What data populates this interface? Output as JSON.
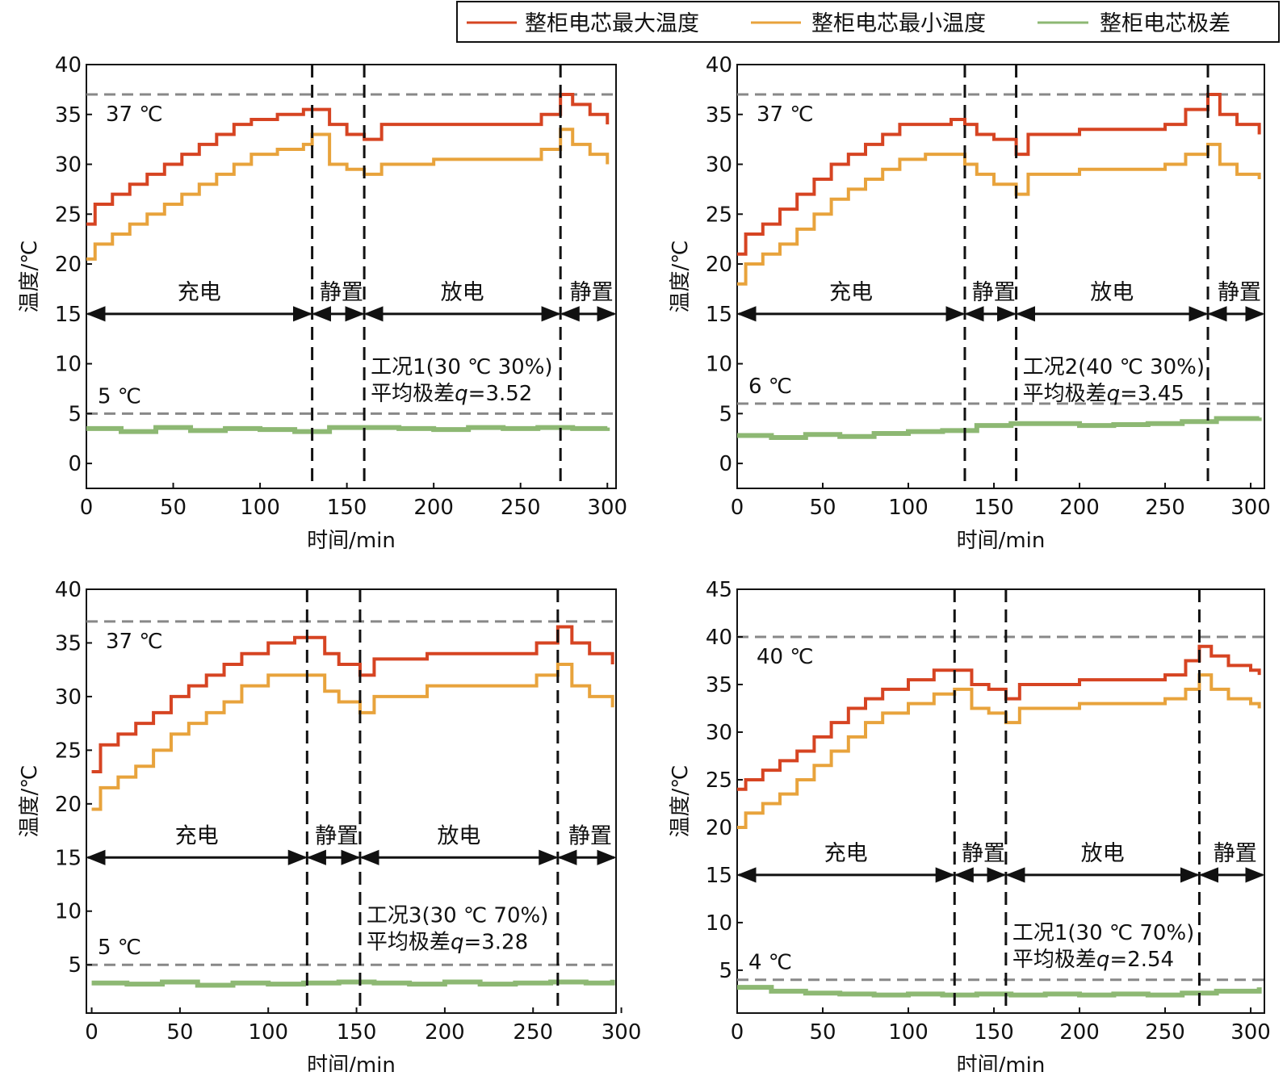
{
  "legend": {
    "items": [
      {
        "label": "整柜电芯最大温度",
        "color": "#d64422"
      },
      {
        "label": "整柜电芯最小温度",
        "color": "#e8a33c"
      },
      {
        "label": "整柜电芯极差",
        "color": "#8db873"
      }
    ]
  },
  "colors": {
    "max": "#d64422",
    "min": "#e8a33c",
    "range": "#8db873",
    "ref": "#888888"
  },
  "chart_data": [
    {
      "type": "line",
      "title": "工况1(30 ℃ 30%)",
      "xlabel": "时间/min",
      "ylabel": "温度/℃",
      "xlim": [
        0,
        305
      ],
      "ylim": [
        -2.5,
        40
      ],
      "xticks": [
        "0",
        "50",
        "100",
        "150",
        "200",
        "250",
        "300"
      ],
      "xtick_values": [
        0,
        50,
        100,
        150,
        200,
        250,
        300
      ],
      "yticks": [
        "0",
        "5",
        "10",
        "15",
        "20",
        "25",
        "30",
        "35",
        "40"
      ],
      "ytick_values": [
        0,
        5,
        10,
        15,
        20,
        25,
        30,
        35,
        40
      ],
      "ref_lines": [
        {
          "y": 37,
          "label": "37 ℃"
        },
        {
          "y": 5,
          "label": "5 ℃"
        }
      ],
      "phase_boundaries": [
        130,
        160,
        273
      ],
      "phase_arrow_y": 15,
      "phases": [
        "充电",
        "静置",
        "放电",
        "静置"
      ],
      "annotation_line1": "工况1(30 ℃ 30%)",
      "annotation_prefix": "平均极差",
      "annotation_var": "q",
      "annotation_value": "=3.52",
      "series": [
        {
          "name": "整柜电芯最大温度",
          "x": [
            0,
            5,
            15,
            25,
            35,
            45,
            55,
            65,
            75,
            85,
            95,
            110,
            125,
            130,
            140,
            150,
            160,
            170,
            200,
            250,
            262,
            273,
            280,
            290,
            300
          ],
          "y": [
            24,
            26,
            27,
            28,
            29,
            30,
            31,
            32,
            33,
            34,
            34.5,
            35,
            35.5,
            35.5,
            34,
            33,
            32.5,
            34,
            34,
            34,
            35,
            37,
            36,
            35,
            34
          ]
        },
        {
          "name": "整柜电芯最小温度",
          "x": [
            0,
            5,
            15,
            25,
            35,
            45,
            55,
            65,
            75,
            85,
            95,
            110,
            125,
            130,
            140,
            150,
            160,
            170,
            200,
            250,
            262,
            273,
            280,
            290,
            300
          ],
          "y": [
            20.5,
            22,
            23,
            24,
            25,
            26,
            27,
            28,
            29,
            30,
            31,
            31.5,
            32,
            33,
            30,
            29.5,
            29,
            30,
            30.5,
            30.5,
            31.5,
            33.5,
            32,
            31,
            30
          ]
        },
        {
          "name": "整柜电芯极差",
          "x": [
            0,
            20,
            40,
            60,
            80,
            100,
            120,
            140,
            160,
            180,
            200,
            220,
            240,
            260,
            280,
            300
          ],
          "y": [
            3.5,
            3.2,
            3.6,
            3.3,
            3.5,
            3.4,
            3.2,
            3.6,
            3.6,
            3.5,
            3.4,
            3.6,
            3.5,
            3.6,
            3.5,
            3.6
          ]
        }
      ]
    },
    {
      "type": "line",
      "title": "工况2(40 ℃ 30%)",
      "xlabel": "时间/min",
      "ylabel": "温度/℃",
      "xlim": [
        0,
        308
      ],
      "ylim": [
        -2.5,
        40
      ],
      "xticks": [
        "0",
        "50",
        "100",
        "150",
        "200",
        "250",
        "300"
      ],
      "xtick_values": [
        0,
        50,
        100,
        150,
        200,
        250,
        300
      ],
      "yticks": [
        "0",
        "5",
        "10",
        "15",
        "20",
        "25",
        "30",
        "35",
        "40"
      ],
      "ytick_values": [
        0,
        5,
        10,
        15,
        20,
        25,
        30,
        35,
        40
      ],
      "ref_lines": [
        {
          "y": 37,
          "label": "37 ℃"
        },
        {
          "y": 6,
          "label": "6 ℃"
        }
      ],
      "phase_boundaries": [
        133,
        163,
        275
      ],
      "phase_arrow_y": 15,
      "phases": [
        "充电",
        "静置",
        "放电",
        "静置"
      ],
      "annotation_line1": "工况2(40 ℃ 30%)",
      "annotation_prefix": "平均极差",
      "annotation_var": "q",
      "annotation_value": "=3.45",
      "series": [
        {
          "name": "整柜电芯最大温度",
          "x": [
            0,
            5,
            15,
            25,
            35,
            45,
            55,
            65,
            75,
            85,
            95,
            110,
            125,
            133,
            140,
            150,
            163,
            170,
            200,
            250,
            262,
            275,
            282,
            292,
            305
          ],
          "y": [
            21,
            23,
            24,
            25.5,
            27,
            28.5,
            30,
            31,
            32,
            33,
            34,
            34,
            34.5,
            34,
            33,
            32.5,
            31,
            33,
            33.5,
            34,
            35.5,
            37,
            35,
            34,
            33
          ]
        },
        {
          "name": "整柜电芯最小温度",
          "x": [
            0,
            5,
            15,
            25,
            35,
            45,
            55,
            65,
            75,
            85,
            95,
            110,
            125,
            133,
            140,
            150,
            163,
            170,
            200,
            250,
            262,
            275,
            282,
            292,
            305
          ],
          "y": [
            18,
            20,
            21,
            22,
            23.5,
            25,
            26.5,
            27.5,
            28.5,
            29.5,
            30.5,
            31,
            31,
            30,
            29,
            28,
            27,
            29,
            29.5,
            30,
            31,
            32,
            30,
            29,
            28.5
          ]
        },
        {
          "name": "整柜电芯极差",
          "x": [
            0,
            20,
            40,
            60,
            80,
            100,
            120,
            140,
            160,
            180,
            200,
            220,
            240,
            260,
            280,
            305
          ],
          "y": [
            2.8,
            2.6,
            2.9,
            2.7,
            3.0,
            3.2,
            3.3,
            3.8,
            4.0,
            4.0,
            3.8,
            3.9,
            4.0,
            4.2,
            4.5,
            4.6
          ]
        }
      ]
    },
    {
      "type": "line",
      "title": "工况3(30 ℃ 70%)",
      "xlabel": "时间/min",
      "ylabel": "温度/℃",
      "xlim": [
        -3,
        297
      ],
      "ylim": [
        0.5,
        40
      ],
      "xticks": [
        "0",
        "50",
        "100",
        "150",
        "200",
        "250",
        "300"
      ],
      "xtick_values": [
        0,
        50,
        100,
        150,
        200,
        250,
        300
      ],
      "yticks": [
        "5",
        "10",
        "15",
        "20",
        "25",
        "30",
        "35",
        "40"
      ],
      "ytick_values": [
        5,
        10,
        15,
        20,
        25,
        30,
        35,
        40
      ],
      "ref_lines": [
        {
          "y": 37,
          "label": "37 ℃"
        },
        {
          "y": 5,
          "label": "5 ℃"
        }
      ],
      "phase_boundaries": [
        122,
        152,
        264
      ],
      "phase_arrow_y": 15,
      "phases": [
        "充电",
        "静置",
        "放电",
        "静置"
      ],
      "annotation_line1": "工况3(30 ℃ 70%)",
      "annotation_prefix": "平均极差",
      "annotation_var": "q",
      "annotation_value": "=3.28",
      "series": [
        {
          "name": "整柜电芯最大温度",
          "x": [
            0,
            5,
            15,
            25,
            35,
            45,
            55,
            65,
            75,
            85,
            100,
            115,
            122,
            132,
            140,
            152,
            160,
            190,
            240,
            252,
            264,
            272,
            282,
            295
          ],
          "y": [
            23,
            25.5,
            26.5,
            27.5,
            28.5,
            30,
            31,
            32,
            33,
            34,
            35,
            35.5,
            35.5,
            34,
            33,
            32,
            33.5,
            34,
            34,
            35,
            36.5,
            35,
            34,
            33
          ]
        },
        {
          "name": "整柜电芯最小温度",
          "x": [
            0,
            5,
            15,
            25,
            35,
            45,
            55,
            65,
            75,
            85,
            100,
            115,
            122,
            132,
            140,
            152,
            160,
            190,
            240,
            252,
            264,
            272,
            282,
            295
          ],
          "y": [
            19.5,
            21.5,
            22.5,
            23.5,
            25,
            26.5,
            27.5,
            28.5,
            29.5,
            31,
            32,
            32,
            32,
            30.5,
            29.5,
            28.5,
            30,
            31,
            31,
            32,
            33,
            31,
            30,
            29
          ]
        },
        {
          "name": "整柜电芯极差",
          "x": [
            0,
            20,
            40,
            60,
            80,
            100,
            120,
            140,
            160,
            180,
            200,
            220,
            240,
            260,
            280,
            295
          ],
          "y": [
            3.3,
            3.2,
            3.4,
            3.1,
            3.3,
            3.2,
            3.3,
            3.4,
            3.3,
            3.2,
            3.4,
            3.2,
            3.3,
            3.4,
            3.3,
            3.6
          ]
        }
      ]
    },
    {
      "type": "line",
      "title": "工况1(30 ℃ 70%)",
      "xlabel": "时间/min",
      "ylabel": "温度/℃",
      "xlim": [
        0,
        308
      ],
      "ylim": [
        0.5,
        45
      ],
      "xticks": [
        "0",
        "50",
        "100",
        "150",
        "200",
        "250",
        "300"
      ],
      "xtick_values": [
        0,
        50,
        100,
        150,
        200,
        250,
        300
      ],
      "yticks": [
        "5",
        "10",
        "15",
        "20",
        "25",
        "30",
        "35",
        "40",
        "45"
      ],
      "ytick_values": [
        5,
        10,
        15,
        20,
        25,
        30,
        35,
        40,
        45
      ],
      "ref_lines": [
        {
          "y": 40,
          "label": "40 ℃"
        },
        {
          "y": 4,
          "label": "4 ℃"
        }
      ],
      "phase_boundaries": [
        127,
        157,
        270
      ],
      "phase_arrow_y": 15,
      "phases": [
        "充电",
        "静置",
        "放电",
        "静置"
      ],
      "annotation_line1": "工况1(30 ℃ 70%)",
      "annotation_prefix": "平均极差",
      "annotation_var": "q",
      "annotation_value": "=2.54",
      "series": [
        {
          "name": "整柜电芯最大温度",
          "x": [
            0,
            5,
            15,
            25,
            35,
            45,
            55,
            65,
            75,
            85,
            100,
            115,
            127,
            137,
            147,
            157,
            165,
            200,
            250,
            262,
            270,
            277,
            287,
            300,
            305
          ],
          "y": [
            24,
            25,
            26,
            27,
            28,
            29.5,
            31,
            32.5,
            33.5,
            34.5,
            35.5,
            36.5,
            36.5,
            35,
            34.5,
            33.5,
            35,
            35.5,
            36,
            37.5,
            39,
            38,
            37,
            36.5,
            36
          ]
        },
        {
          "name": "整柜电芯最小温度",
          "x": [
            0,
            5,
            15,
            25,
            35,
            45,
            55,
            65,
            75,
            85,
            100,
            115,
            127,
            137,
            147,
            157,
            165,
            200,
            250,
            262,
            270,
            277,
            287,
            300,
            305
          ],
          "y": [
            20,
            21.5,
            22.5,
            23.5,
            25,
            26.5,
            28,
            29.5,
            31,
            32,
            33,
            34,
            34.5,
            32.5,
            32,
            31,
            32.5,
            33,
            33.5,
            34.5,
            36,
            34.5,
            33.5,
            33,
            32.5
          ]
        },
        {
          "name": "整柜电芯极差",
          "x": [
            0,
            20,
            40,
            60,
            80,
            100,
            120,
            140,
            160,
            180,
            200,
            220,
            240,
            260,
            280,
            305
          ],
          "y": [
            3.2,
            2.8,
            2.6,
            2.5,
            2.4,
            2.5,
            2.4,
            2.5,
            2.4,
            2.5,
            2.4,
            2.5,
            2.4,
            2.6,
            2.8,
            3.2
          ]
        }
      ]
    }
  ]
}
